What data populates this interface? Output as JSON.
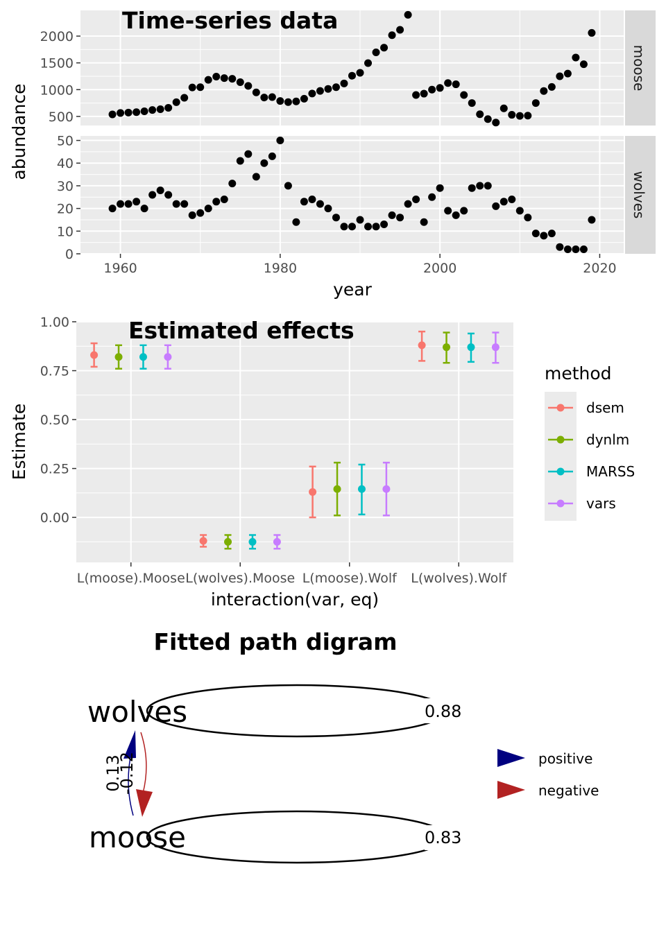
{
  "chart_data": [
    {
      "type": "scatter",
      "title": "Time-series data",
      "xlabel": "year",
      "ylabel": "abundance",
      "facet_by": "rows",
      "xlim": [
        1955,
        2023
      ],
      "xticks": [
        "1960",
        "1980",
        "2000",
        "2020"
      ],
      "panels": [
        {
          "strip": "moose",
          "ylim": [
            330,
            2480
          ],
          "yticks": [
            "500",
            "1000",
            "1500",
            "2000"
          ],
          "x": [
            1959,
            1960,
            1961,
            1962,
            1963,
            1964,
            1965,
            1966,
            1967,
            1968,
            1969,
            1970,
            1971,
            1972,
            1973,
            1974,
            1975,
            1976,
            1977,
            1978,
            1979,
            1980,
            1981,
            1982,
            1983,
            1984,
            1985,
            1986,
            1987,
            1988,
            1989,
            1990,
            1991,
            1992,
            1993,
            1994,
            1995,
            1996,
            1997,
            1998,
            1999,
            2000,
            2001,
            2002,
            2003,
            2004,
            2005,
            2006,
            2007,
            2008,
            2009,
            2010,
            2011,
            2012,
            2013,
            2014,
            2015,
            2016,
            2017,
            2018,
            2019
          ],
          "y": [
            538,
            564,
            572,
            579,
            596,
            620,
            634,
            661,
            766,
            848,
            1041,
            1045,
            1183,
            1243,
            1215,
            1203,
            1139,
            1070,
            949,
            853,
            861,
            788,
            767,
            780,
            830,
            927,
            976,
            1014,
            1046,
            1116,
            1260,
            1315,
            1496,
            1697,
            1784,
            2017,
            2117,
            2398,
            900,
            925,
            1000,
            1032,
            1123,
            1100,
            900,
            750,
            540,
            450,
            385,
            650,
            530,
            510,
            515,
            750,
            975,
            1050,
            1250,
            1300,
            1600,
            1475,
            2060
          ]
        },
        {
          "strip": "wolves",
          "ylim": [
            0,
            52
          ],
          "yticks": [
            "0",
            "10",
            "20",
            "30",
            "40",
            "50"
          ],
          "x": [
            1959,
            1960,
            1961,
            1962,
            1963,
            1964,
            1965,
            1966,
            1967,
            1968,
            1969,
            1970,
            1971,
            1972,
            1973,
            1974,
            1975,
            1976,
            1977,
            1978,
            1979,
            1980,
            1981,
            1982,
            1983,
            1984,
            1985,
            1986,
            1987,
            1988,
            1989,
            1990,
            1991,
            1992,
            1993,
            1994,
            1995,
            1996,
            1997,
            1998,
            1999,
            2000,
            2001,
            2002,
            2003,
            2004,
            2005,
            2006,
            2007,
            2008,
            2009,
            2010,
            2011,
            2012,
            2013,
            2014,
            2015,
            2016,
            2017,
            2018,
            2019
          ],
          "y": [
            20,
            22,
            22,
            23,
            20,
            26,
            28,
            26,
            22,
            22,
            17,
            18,
            20,
            23,
            24,
            31,
            41,
            44,
            34,
            40,
            43,
            50,
            30,
            14,
            23,
            24,
            22,
            20,
            16,
            12,
            12,
            15,
            12,
            12,
            13,
            17,
            16,
            22,
            24,
            14,
            25,
            29,
            19,
            17,
            19,
            29,
            30,
            30,
            21,
            23,
            24,
            19,
            16,
            9,
            8,
            9,
            3,
            2,
            2,
            2,
            15
          ]
        }
      ]
    },
    {
      "type": "errorbar",
      "title": "Estimated effects",
      "xlabel": "interaction(var, eq)",
      "ylabel": "Estimate",
      "ylim": [
        -0.23,
        1.0
      ],
      "yticks": [
        "0.00",
        "0.25",
        "0.50",
        "0.75",
        "1.00"
      ],
      "categories": [
        "L(moose).Moose",
        "L(wolves).Moose",
        "L(moose).Wolf",
        "L(wolves).Wolf"
      ],
      "legend_title": "method",
      "legend_position": "right",
      "series": [
        {
          "name": "dsem",
          "color": "#F8766D",
          "values": [
            0.83,
            -0.12,
            0.13,
            0.88
          ],
          "lower": [
            0.77,
            -0.15,
            0.0,
            0.8
          ],
          "upper": [
            0.89,
            -0.09,
            0.26,
            0.95
          ]
        },
        {
          "name": "dynlm",
          "color": "#7CAE00",
          "values": [
            0.82,
            -0.125,
            0.145,
            0.87
          ],
          "lower": [
            0.76,
            -0.16,
            0.01,
            0.79
          ],
          "upper": [
            0.88,
            -0.09,
            0.28,
            0.945
          ]
        },
        {
          "name": "MARSS",
          "color": "#00BFC4",
          "values": [
            0.82,
            -0.125,
            0.145,
            0.87
          ],
          "lower": [
            0.76,
            -0.16,
            0.015,
            0.795
          ],
          "upper": [
            0.88,
            -0.09,
            0.27,
            0.94
          ]
        },
        {
          "name": "vars",
          "color": "#C77CFF",
          "values": [
            0.82,
            -0.125,
            0.145,
            0.87
          ],
          "lower": [
            0.76,
            -0.16,
            0.01,
            0.79
          ],
          "upper": [
            0.88,
            -0.09,
            0.28,
            0.945
          ]
        }
      ]
    },
    {
      "type": "diagram",
      "title": "Fitted path digram",
      "nodes": [
        "wolves",
        "moose"
      ],
      "edges": [
        {
          "from": "wolves",
          "to": "wolves",
          "label": "0.88",
          "sign": "positive"
        },
        {
          "from": "moose",
          "to": "moose",
          "label": "0.83",
          "sign": "positive"
        },
        {
          "from": "moose",
          "to": "wolves",
          "label": "0.13",
          "sign": "positive",
          "color": "#000080"
        },
        {
          "from": "wolves",
          "to": "moose",
          "label": "-0.12",
          "sign": "negative",
          "color": "#B22222"
        }
      ],
      "legend": [
        {
          "label": "positive",
          "color": "#000080"
        },
        {
          "label": "negative",
          "color": "#B22222"
        }
      ]
    }
  ]
}
